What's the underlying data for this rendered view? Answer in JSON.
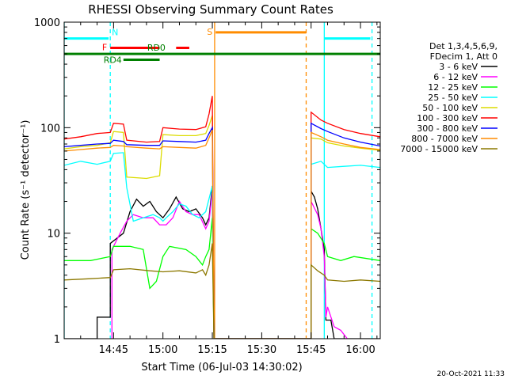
{
  "chart_data": {
    "type": "line",
    "title": "RHESSI Observing Summary Count Rates",
    "xlabel": "Start Time (06-Jul-03 14:30:02)",
    "ylabel": "Count Rate (s⁻¹ detector⁻¹)",
    "x_unit": "minutes after 14:30:02",
    "xlim": [
      0,
      96
    ],
    "ylim": [
      1,
      1000
    ],
    "y_scale": "log",
    "x_ticks": [
      {
        "value": 15,
        "label": "14:45"
      },
      {
        "value": 30,
        "label": "15:00"
      },
      {
        "value": 45,
        "label": "15:15"
      },
      {
        "value": 60,
        "label": "15:30"
      },
      {
        "value": 75,
        "label": "15:45"
      },
      {
        "value": 90,
        "label": "16:00"
      }
    ],
    "y_ticks": [
      {
        "value": 1,
        "label": "1"
      },
      {
        "value": 10,
        "label": "10"
      },
      {
        "value": 100,
        "label": "100"
      },
      {
        "value": 1000,
        "label": "1000"
      }
    ],
    "legend": {
      "placement": "right",
      "header": [
        "Det 1,3,4,5,6,9,",
        "FDecim 1, Att 0"
      ]
    },
    "series": [
      {
        "name": "3 - 6 keV",
        "color": "#000000",
        "points": [
          [
            0,
            1
          ],
          [
            10,
            1
          ],
          [
            10,
            1.6
          ],
          [
            14,
            1.6
          ],
          [
            14,
            8
          ],
          [
            18,
            10
          ],
          [
            20,
            16
          ],
          [
            22,
            21
          ],
          [
            24,
            18
          ],
          [
            26,
            20
          ],
          [
            28,
            16
          ],
          [
            30,
            14
          ],
          [
            32,
            17
          ],
          [
            34,
            22
          ],
          [
            36,
            17
          ],
          [
            38,
            16
          ],
          [
            40,
            17
          ],
          [
            42,
            14
          ],
          [
            43,
            12
          ],
          [
            44,
            14
          ],
          [
            45,
            28
          ],
          [
            45.5,
            1
          ],
          [
            75,
            1
          ],
          [
            75,
            25
          ],
          [
            76,
            22
          ],
          [
            77,
            17
          ],
          [
            78,
            11
          ],
          [
            79,
            7
          ],
          [
            79.5,
            1.5
          ],
          [
            81,
            1.5
          ],
          [
            82,
            1
          ],
          [
            96,
            1
          ]
        ]
      },
      {
        "name": "6 - 12 keV",
        "color": "#ff00ff",
        "points": [
          [
            14.5,
            1
          ],
          [
            14.5,
            7
          ],
          [
            17,
            10
          ],
          [
            19,
            13
          ],
          [
            21,
            15
          ],
          [
            24,
            14
          ],
          [
            27,
            14
          ],
          [
            29,
            12
          ],
          [
            31,
            12
          ],
          [
            33,
            14
          ],
          [
            35,
            20
          ],
          [
            37,
            16
          ],
          [
            39,
            15
          ],
          [
            41,
            15
          ],
          [
            43,
            11
          ],
          [
            44,
            13
          ],
          [
            45,
            25
          ],
          [
            45.5,
            1
          ],
          [
            75,
            1
          ],
          [
            75,
            20
          ],
          [
            77,
            15
          ],
          [
            78,
            11
          ],
          [
            79,
            6
          ],
          [
            79.5,
            1.6
          ],
          [
            80,
            2
          ],
          [
            82,
            1.3
          ],
          [
            84,
            1.2
          ],
          [
            86,
            1
          ]
        ]
      },
      {
        "name": "12 - 25 keV",
        "color": "#00ff00",
        "points": [
          [
            0,
            5.5
          ],
          [
            8,
            5.5
          ],
          [
            14,
            6
          ],
          [
            15,
            7.5
          ],
          [
            20,
            7.5
          ],
          [
            24,
            7
          ],
          [
            26,
            3
          ],
          [
            28,
            3.5
          ],
          [
            30,
            6
          ],
          [
            32,
            7.5
          ],
          [
            37,
            7
          ],
          [
            40,
            6
          ],
          [
            42,
            5
          ],
          [
            43,
            6
          ],
          [
            44,
            7
          ],
          [
            45,
            14
          ],
          [
            45.5,
            1
          ],
          [
            75,
            1
          ],
          [
            75,
            11
          ],
          [
            77,
            10
          ],
          [
            79,
            8
          ],
          [
            80,
            6
          ],
          [
            84,
            5.5
          ],
          [
            88,
            6
          ],
          [
            96,
            5.5
          ]
        ]
      },
      {
        "name": "25 - 50 keV",
        "color": "#00ffff",
        "points": [
          [
            0,
            44
          ],
          [
            5,
            48
          ],
          [
            10,
            45
          ],
          [
            14,
            48
          ],
          [
            15,
            57
          ],
          [
            18,
            58
          ],
          [
            19,
            27
          ],
          [
            21,
            13
          ],
          [
            24,
            14
          ],
          [
            27,
            15
          ],
          [
            29,
            14
          ],
          [
            30,
            13
          ],
          [
            31,
            14
          ],
          [
            33,
            16
          ],
          [
            35,
            19
          ],
          [
            37,
            18
          ],
          [
            39,
            15
          ],
          [
            41,
            14
          ],
          [
            43,
            16
          ],
          [
            45,
            28
          ],
          [
            45.5,
            1
          ],
          [
            75,
            1
          ],
          [
            75,
            45
          ],
          [
            78,
            48
          ],
          [
            80,
            42
          ],
          [
            85,
            43
          ],
          [
            90,
            44
          ],
          [
            96,
            42
          ]
        ]
      },
      {
        "name": "50 - 100 keV",
        "color": "#dcdc00",
        "points": [
          [
            0,
            63
          ],
          [
            5,
            66
          ],
          [
            10,
            68
          ],
          [
            14,
            72
          ],
          [
            15,
            92
          ],
          [
            18,
            90
          ],
          [
            19,
            34
          ],
          [
            25,
            33
          ],
          [
            29,
            35
          ],
          [
            30,
            86
          ],
          [
            35,
            84
          ],
          [
            40,
            84
          ],
          [
            43,
            88
          ],
          [
            44,
            105
          ],
          [
            45,
            130
          ],
          [
            45.5,
            1
          ],
          [
            75,
            1
          ],
          [
            75,
            80
          ],
          [
            78,
            78
          ],
          [
            80,
            72
          ],
          [
            85,
            67
          ],
          [
            90,
            64
          ],
          [
            96,
            61
          ]
        ]
      },
      {
        "name": "100 - 300 keV",
        "color": "#ff0000",
        "points": [
          [
            0,
            78
          ],
          [
            5,
            82
          ],
          [
            10,
            88
          ],
          [
            14,
            90
          ],
          [
            15,
            110
          ],
          [
            18,
            108
          ],
          [
            19,
            76
          ],
          [
            25,
            73
          ],
          [
            29,
            74
          ],
          [
            30,
            100
          ],
          [
            35,
            97
          ],
          [
            40,
            96
          ],
          [
            43,
            102
          ],
          [
            44,
            135
          ],
          [
            45,
            200
          ],
          [
            45.5,
            1
          ],
          [
            75,
            1
          ],
          [
            75,
            140
          ],
          [
            78,
            118
          ],
          [
            80,
            110
          ],
          [
            85,
            96
          ],
          [
            90,
            88
          ],
          [
            96,
            82
          ]
        ]
      },
      {
        "name": "300 - 800 keV",
        "color": "#0000ff",
        "points": [
          [
            0,
            66
          ],
          [
            5,
            68
          ],
          [
            10,
            70
          ],
          [
            14,
            71
          ],
          [
            15,
            76
          ],
          [
            18,
            74
          ],
          [
            19,
            69
          ],
          [
            25,
            68
          ],
          [
            29,
            68
          ],
          [
            30,
            75
          ],
          [
            35,
            74
          ],
          [
            40,
            73
          ],
          [
            43,
            76
          ],
          [
            44,
            88
          ],
          [
            45,
            100
          ],
          [
            45.5,
            1
          ],
          [
            75,
            1
          ],
          [
            75,
            110
          ],
          [
            78,
            98
          ],
          [
            80,
            92
          ],
          [
            85,
            80
          ],
          [
            90,
            73
          ],
          [
            96,
            67
          ]
        ]
      },
      {
        "name": "800 - 7000 keV",
        "color": "#ff8c00",
        "points": [
          [
            0,
            60
          ],
          [
            5,
            62
          ],
          [
            10,
            64
          ],
          [
            14,
            65
          ],
          [
            15,
            68
          ],
          [
            18,
            67
          ],
          [
            19,
            66
          ],
          [
            25,
            64
          ],
          [
            29,
            63
          ],
          [
            30,
            66
          ],
          [
            35,
            65
          ],
          [
            40,
            64
          ],
          [
            43,
            68
          ],
          [
            44,
            80
          ],
          [
            45,
            95
          ],
          [
            45.5,
            1
          ],
          [
            75,
            1
          ],
          [
            75,
            90
          ],
          [
            78,
            82
          ],
          [
            80,
            76
          ],
          [
            85,
            70
          ],
          [
            90,
            65
          ],
          [
            96,
            62
          ]
        ]
      },
      {
        "name": "7000 - 15000 keV",
        "color": "#8c7800",
        "points": [
          [
            0,
            3.6
          ],
          [
            8,
            3.7
          ],
          [
            14,
            3.8
          ],
          [
            15,
            4.5
          ],
          [
            20,
            4.6
          ],
          [
            26,
            4.4
          ],
          [
            30,
            4.3
          ],
          [
            35,
            4.4
          ],
          [
            40,
            4.2
          ],
          [
            42,
            4.5
          ],
          [
            43,
            4.0
          ],
          [
            44,
            5.0
          ],
          [
            45,
            8.0
          ],
          [
            45.5,
            1
          ],
          [
            75,
            1
          ],
          [
            75,
            5.0
          ],
          [
            77,
            4.4
          ],
          [
            79,
            4.0
          ],
          [
            80,
            3.6
          ],
          [
            85,
            3.5
          ],
          [
            90,
            3.6
          ],
          [
            96,
            3.5
          ]
        ]
      }
    ],
    "annotations": {
      "vertical_markers": [
        {
          "x": 0,
          "color": "#00ffff",
          "style": "solid"
        },
        {
          "x": 14,
          "color": "#00ffff",
          "style": "dashed"
        },
        {
          "x": 79,
          "color": "#00ffff",
          "style": "solid"
        },
        {
          "x": 93.5,
          "color": "#00ffff",
          "style": "dashed"
        },
        {
          "x": 45.7,
          "color": "#ff8c00",
          "style": "solid"
        },
        {
          "x": 73.5,
          "color": "#ff8c00",
          "style": "dashed"
        }
      ],
      "bars": [
        {
          "label": "N",
          "color": "#00ffff",
          "segments": [
            [
              0,
              13.5
            ],
            [
              79,
              93
            ]
          ],
          "level": 700
        },
        {
          "label": "F",
          "color": "#ff0000",
          "segments": [
            [
              14,
              29
            ],
            [
              34,
              38
            ]
          ],
          "level": 570
        },
        {
          "label": "RD0",
          "color": "#008000",
          "segments": [
            [
              0,
              96
            ]
          ],
          "level": 500
        },
        {
          "label": "RD4",
          "color": "#008000",
          "segments": [
            [
              18,
              29
            ]
          ],
          "level": 440
        },
        {
          "label": "S",
          "color": "#ff8c00",
          "segments": [
            [
              46,
              73.5
            ]
          ],
          "level": 800
        }
      ]
    }
  },
  "timestamp": "20-Oct-2021 11:33"
}
